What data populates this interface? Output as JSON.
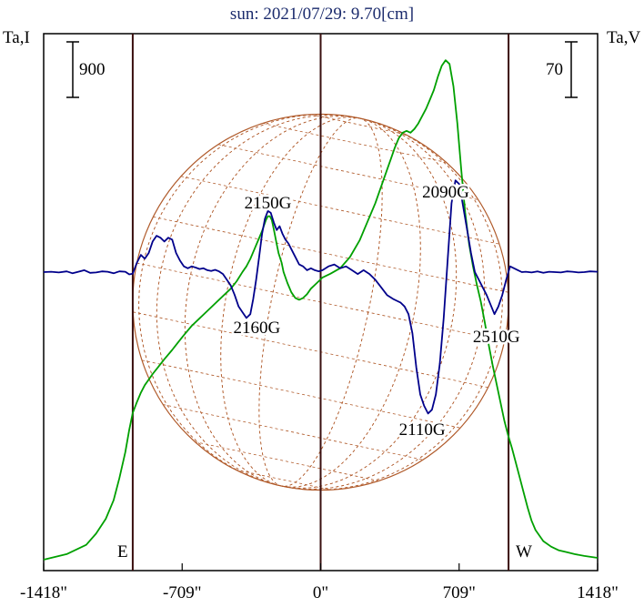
{
  "chart_data": {
    "type": "line",
    "title": "sun: 2021/07/29: 9.70[cm]",
    "left_axis_label": "Ta,I",
    "right_axis_label": "Ta,V",
    "x_unit": "arcsec",
    "xlim": [
      -1418,
      1418
    ],
    "x_ticks": [
      -1418,
      -709,
      0,
      709,
      1418
    ],
    "x_tick_labels": [
      "-1418\"",
      "-709\"",
      "0\"",
      "709\"",
      "1418\""
    ],
    "disk_edges": [
      -962,
      962
    ],
    "limb_labels": {
      "east": "E",
      "west": "W"
    },
    "scale_bars": {
      "intensity": "900",
      "polarization": "70"
    },
    "colors": {
      "intensity": "#00a000",
      "polarization": "#00008b",
      "disk": "#b05a2a",
      "lines": "#3a0f0f"
    },
    "series": [
      {
        "key": "intensity",
        "x": [
          -1418,
          -1300,
          -1200,
          -1150,
          -1100,
          -1060,
          -1030,
          -1000,
          -980,
          -962,
          -940,
          -920,
          -900,
          -880,
          -860,
          -830,
          -800,
          -760,
          -730,
          -700,
          -660,
          -620,
          -580,
          -540,
          -500,
          -460,
          -430,
          -400,
          -380,
          -360,
          -340,
          -320,
          -300,
          -290,
          -280,
          -270,
          -260,
          -250,
          -240,
          -225,
          -215,
          -200,
          -190,
          -170,
          -150,
          -130,
          -110,
          -90,
          -70,
          -50,
          -30,
          -10,
          10,
          50,
          100,
          150,
          200,
          220,
          240,
          260,
          280,
          300,
          320,
          340,
          360,
          380,
          400,
          420,
          440,
          460,
          480,
          500,
          520,
          540,
          560,
          580,
          600,
          620,
          640,
          660,
          680,
          700,
          720,
          740,
          760,
          780,
          800,
          820,
          840,
          860,
          880,
          900,
          920,
          940,
          960,
          980,
          1000,
          1020,
          1040,
          1060,
          1080,
          1100,
          1140,
          1180,
          1220,
          1260,
          1300,
          1350,
          1418
        ],
        "y": [
          0.0,
          0.03,
          0.08,
          0.14,
          0.22,
          0.32,
          0.44,
          0.58,
          0.7,
          0.79,
          0.85,
          0.9,
          0.94,
          0.97,
          1.0,
          1.04,
          1.08,
          1.13,
          1.17,
          1.21,
          1.26,
          1.3,
          1.34,
          1.38,
          1.42,
          1.46,
          1.5,
          1.55,
          1.58,
          1.62,
          1.67,
          1.72,
          1.77,
          1.8,
          1.83,
          1.85,
          1.85,
          1.83,
          1.78,
          1.7,
          1.65,
          1.6,
          1.55,
          1.49,
          1.44,
          1.41,
          1.4,
          1.41,
          1.43,
          1.46,
          1.48,
          1.5,
          1.52,
          1.54,
          1.57,
          1.63,
          1.72,
          1.77,
          1.82,
          1.87,
          1.92,
          1.98,
          2.04,
          2.1,
          2.16,
          2.22,
          2.27,
          2.3,
          2.31,
          2.3,
          2.32,
          2.35,
          2.39,
          2.43,
          2.48,
          2.53,
          2.6,
          2.66,
          2.69,
          2.67,
          2.55,
          2.35,
          2.1,
          1.87,
          1.7,
          1.58,
          1.48,
          1.39,
          1.28,
          1.16,
          1.05,
          0.95,
          0.85,
          0.75,
          0.67,
          0.6,
          0.52,
          0.44,
          0.36,
          0.28,
          0.21,
          0.16,
          0.1,
          0.07,
          0.05,
          0.04,
          0.03,
          0.02,
          0.01
        ]
      },
      {
        "key": "polarization",
        "x": [
          -1418,
          -1380,
          -1340,
          -1300,
          -1270,
          -1240,
          -1210,
          -1180,
          -1150,
          -1120,
          -1090,
          -1060,
          -1030,
          -1000,
          -980,
          -962,
          -940,
          -920,
          -900,
          -880,
          -860,
          -840,
          -820,
          -800,
          -780,
          -760,
          -740,
          -720,
          -700,
          -680,
          -660,
          -640,
          -620,
          -600,
          -580,
          -560,
          -540,
          -520,
          -500,
          -480,
          -460,
          -440,
          -420,
          -400,
          -380,
          -360,
          -345,
          -330,
          -315,
          -300,
          -285,
          -270,
          -255,
          -240,
          -225,
          -210,
          -195,
          -180,
          -165,
          -150,
          -130,
          -110,
          -90,
          -70,
          -50,
          -30,
          -10,
          10,
          40,
          70,
          100,
          130,
          160,
          190,
          220,
          250,
          280,
          310,
          340,
          370,
          390,
          410,
          430,
          450,
          470,
          490,
          510,
          530,
          550,
          570,
          590,
          610,
          630,
          650,
          670,
          690,
          710,
          730,
          750,
          770,
          790,
          810,
          830,
          850,
          870,
          890,
          910,
          930,
          950,
          970,
          990,
          1010,
          1030,
          1050,
          1080,
          1110,
          1140,
          1170,
          1200,
          1230,
          1260,
          1290,
          1320,
          1350,
          1380,
          1418
        ],
        "y": [
          0.0,
          0.01,
          -0.01,
          0.02,
          -0.03,
          0.01,
          0.05,
          -0.02,
          -0.01,
          0.02,
          0.01,
          -0.03,
          0.02,
          0.01,
          -0.06,
          -0.04,
          0.25,
          0.45,
          0.35,
          0.5,
          0.8,
          0.95,
          0.9,
          0.8,
          0.9,
          0.85,
          0.5,
          0.3,
          0.15,
          0.1,
          0.15,
          0.12,
          0.08,
          0.1,
          0.05,
          0.03,
          0.06,
          0.02,
          -0.05,
          -0.2,
          -0.35,
          -0.6,
          -0.9,
          -1.05,
          -1.2,
          -1.1,
          -0.7,
          -0.2,
          0.4,
          1.0,
          1.4,
          1.6,
          1.55,
          1.3,
          1.1,
          1.2,
          1.0,
          0.85,
          0.75,
          0.6,
          0.4,
          0.2,
          0.15,
          0.05,
          0.1,
          0.05,
          0.02,
          0.05,
          0.15,
          0.2,
          0.1,
          0.15,
          0.05,
          -0.05,
          0.05,
          -0.05,
          -0.2,
          -0.4,
          -0.6,
          -0.7,
          -0.75,
          -0.8,
          -0.9,
          -1.1,
          -1.6,
          -2.5,
          -3.2,
          -3.5,
          -3.7,
          -3.6,
          -3.2,
          -2.4,
          -1.2,
          0.3,
          1.8,
          2.4,
          2.3,
          1.7,
          1.1,
          0.5,
          0.0,
          -0.2,
          -0.4,
          -0.6,
          -0.85,
          -1.1,
          -0.9,
          -0.6,
          -0.2,
          0.15,
          0.1,
          0.05,
          0.0,
          0.01,
          -0.01,
          0.02,
          -0.02,
          0.01,
          0.0,
          -0.01,
          0.02,
          0.01,
          -0.01,
          0.0,
          0.02,
          0.01
        ]
      }
    ],
    "annotations": [
      {
        "label": "2150G",
        "x": -270,
        "series": "intensity"
      },
      {
        "label": "2090G",
        "x": 640,
        "series": "intensity"
      },
      {
        "label": "2160G",
        "x": -350,
        "series": "polarization"
      },
      {
        "label": "2510G",
        "x": 900,
        "series": "polarization"
      },
      {
        "label": "2110G",
        "x": 520,
        "series": "polarization"
      }
    ]
  }
}
